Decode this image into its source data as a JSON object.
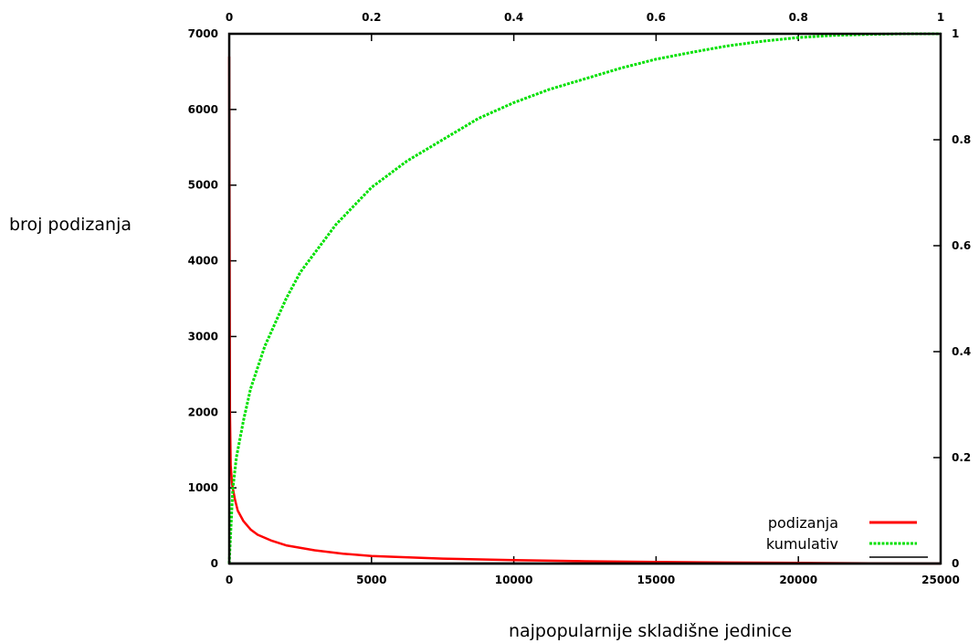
{
  "chart_data": {
    "type": "line",
    "xlabel": "najpopularnije skladišne jedinice",
    "ylabel": "broj podizanja",
    "xlim": [
      0,
      25000
    ],
    "ylim": [
      0,
      7000
    ],
    "x_ticks": [
      0,
      5000,
      10000,
      15000,
      20000,
      25000
    ],
    "y_ticks": [
      0,
      1000,
      2000,
      3000,
      4000,
      5000,
      6000,
      7000
    ],
    "x2lim": [
      0,
      1
    ],
    "x2_ticks": [
      0,
      0.2,
      0.4,
      0.6,
      0.8,
      1
    ],
    "y2lim": [
      0,
      1
    ],
    "y2_ticks": [
      0,
      0.2,
      0.4,
      0.6,
      0.8,
      1
    ],
    "grid": false,
    "legend_position": "bottom-right",
    "series": [
      {
        "name": "podizanja",
        "axis": "primary",
        "color": "#ff0000",
        "style": "solid",
        "x": [
          0,
          25,
          50,
          100,
          200,
          300,
          500,
          750,
          1000,
          1500,
          2000,
          3000,
          4000,
          5000,
          7500,
          10000,
          12500,
          15000,
          17500,
          20000,
          22500,
          25000
        ],
        "y": [
          6700,
          2000,
          1300,
          1050,
          850,
          700,
          560,
          450,
          380,
          300,
          240,
          175,
          130,
          100,
          65,
          45,
          30,
          20,
          13,
          8,
          4,
          0
        ]
      },
      {
        "name": "kumulativ",
        "axis": "secondary",
        "color": "#00e000",
        "style": "dashed",
        "x": [
          0,
          0.005,
          0.01,
          0.02,
          0.03,
          0.05,
          0.08,
          0.1,
          0.15,
          0.2,
          0.25,
          0.3,
          0.35,
          0.4,
          0.45,
          0.5,
          0.55,
          0.6,
          0.65,
          0.7,
          0.75,
          0.8,
          0.85,
          0.9,
          0.95,
          1.0
        ],
        "y": [
          0,
          0.14,
          0.2,
          0.27,
          0.33,
          0.41,
          0.5,
          0.55,
          0.64,
          0.71,
          0.76,
          0.8,
          0.84,
          0.87,
          0.895,
          0.915,
          0.935,
          0.952,
          0.965,
          0.977,
          0.986,
          0.993,
          0.997,
          0.999,
          1.0,
          1.0
        ]
      },
      {
        "name": "",
        "axis": "primary",
        "color": "#000000",
        "style": "solid",
        "x": [
          0,
          25000
        ],
        "y": [
          0,
          0
        ]
      }
    ]
  }
}
